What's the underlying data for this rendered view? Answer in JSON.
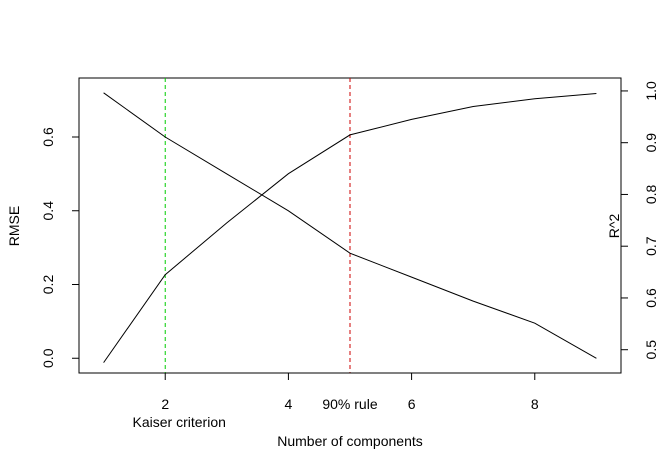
{
  "chart_data": {
    "type": "line",
    "title": "",
    "xlabel": "Number of components",
    "ylabel_left": "RMSE",
    "ylabel_right": "R^2",
    "x": [
      1,
      2,
      3,
      4,
      5,
      6,
      7,
      8,
      9
    ],
    "xlim": [
      0.6,
      9.4
    ],
    "ylim_left": [
      -0.04,
      0.76
    ],
    "ylim_right": [
      0.455,
      1.025
    ],
    "x_ticks": [
      2,
      4,
      6,
      8
    ],
    "y_ticks_left": [
      0.0,
      0.2,
      0.4,
      0.6
    ],
    "y_ticks_left_labels": [
      "0.0",
      "0.2",
      "0.4",
      "0.6"
    ],
    "y_ticks_right": [
      0.5,
      0.6,
      0.7,
      0.8,
      0.9,
      1.0
    ],
    "y_ticks_right_labels": [
      "0.5",
      "0.6",
      "0.7",
      "0.8",
      "0.9",
      "1.0"
    ],
    "series": [
      {
        "axis": "left",
        "color": "#000000",
        "values": [
          0.72,
          0.6,
          0.5,
          0.4,
          0.285,
          0.22,
          0.155,
          0.095,
          0.0
        ]
      },
      {
        "axis": "right",
        "color": "#000000",
        "values": [
          0.475,
          0.645,
          0.745,
          0.84,
          0.915,
          0.945,
          0.97,
          0.985,
          0.995
        ]
      }
    ],
    "reference_lines": [
      {
        "x": 2,
        "label": "Kaiser criterion",
        "color": "#00cc00"
      },
      {
        "x": 5,
        "label": "90% rule",
        "color": "#cc0000"
      }
    ],
    "grid": false
  }
}
